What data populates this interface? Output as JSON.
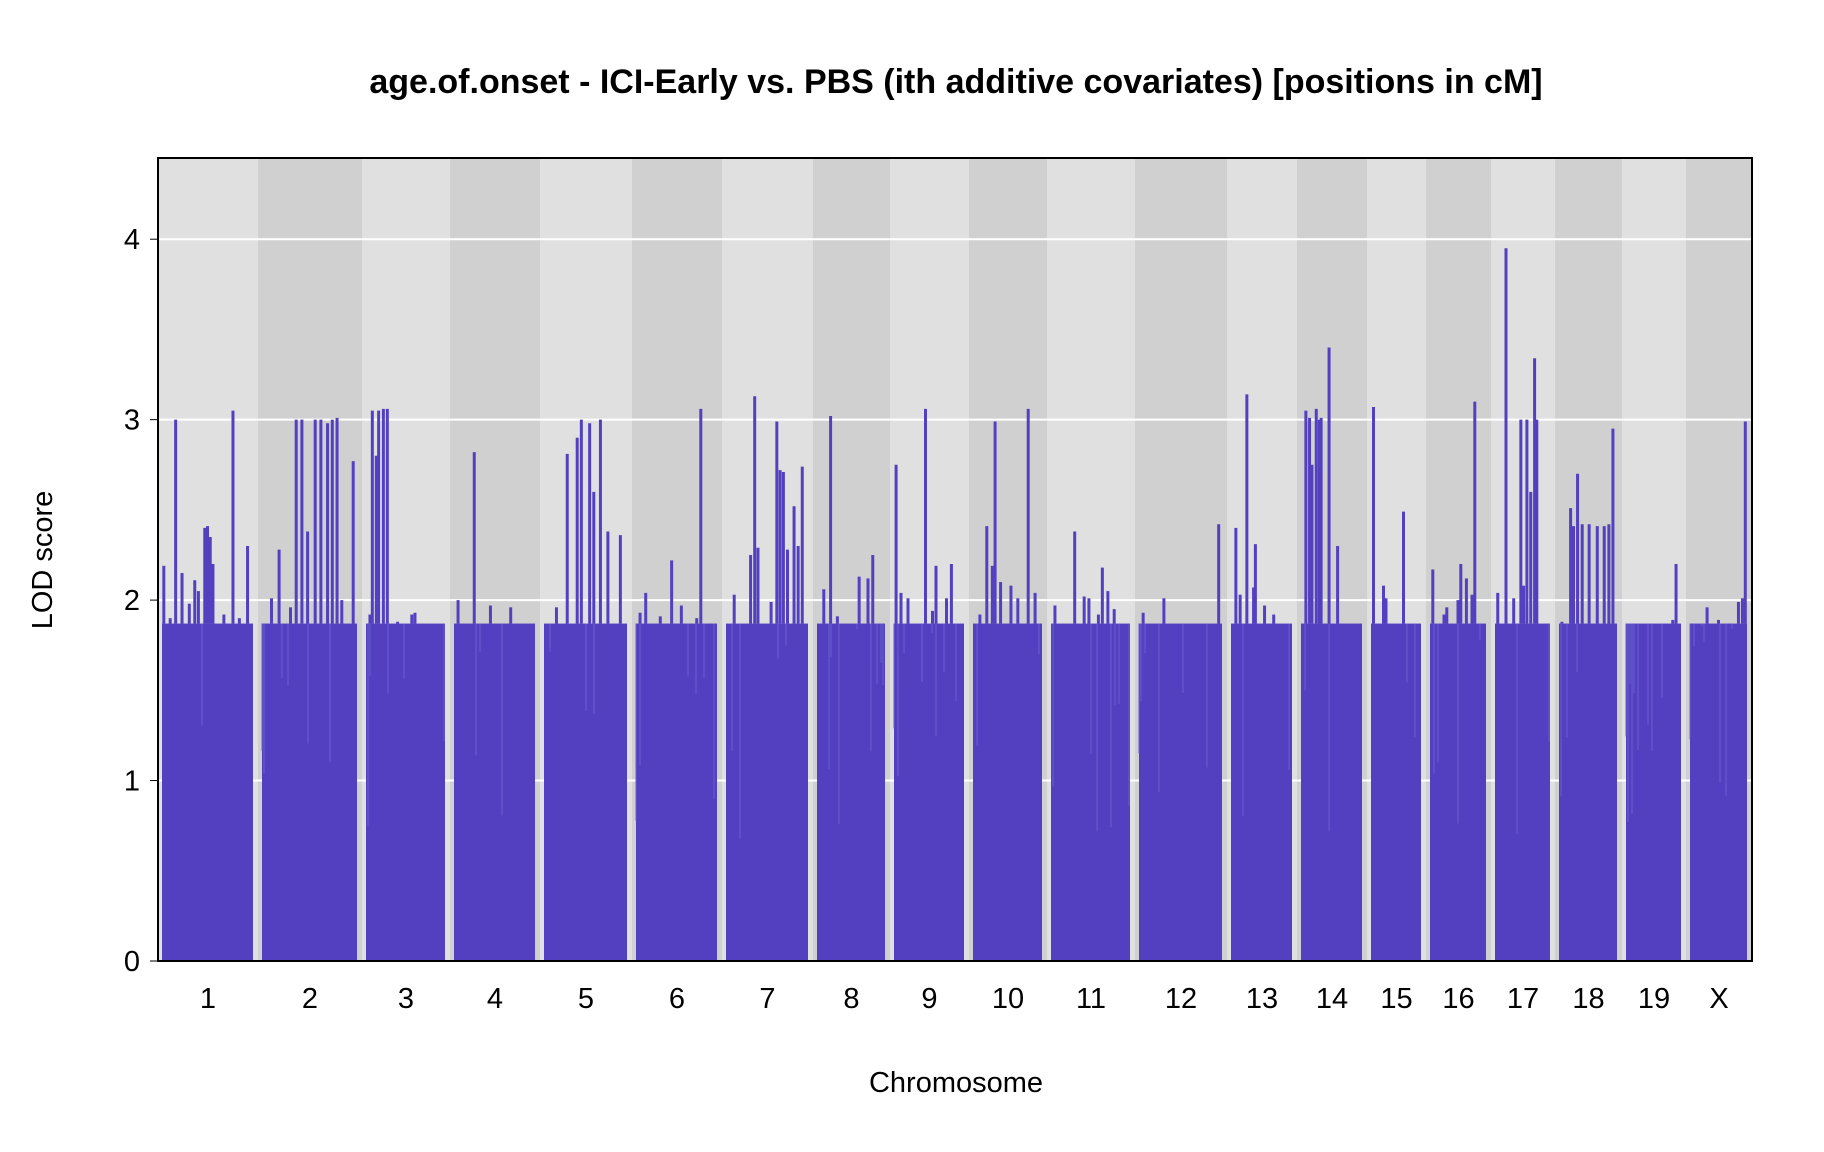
{
  "chart_data": {
    "type": "bar",
    "title": "age.of.onset - ICI-Early vs. PBS (ith additive covariates) [positions in cM]",
    "xlabel": "Chromosome",
    "ylabel": "LOD score",
    "ylim": [
      0,
      4.45
    ],
    "yticks": [
      0,
      1,
      2,
      3,
      4
    ],
    "grid": true,
    "legend": "none",
    "colors": {
      "signal": "#5340c0",
      "band_light": "#e0e0e0",
      "band_dark": "#d0d0d0",
      "grid": "#ffffff",
      "frame": "#000000"
    },
    "categories": [
      "1",
      "2",
      "3",
      "4",
      "5",
      "6",
      "7",
      "8",
      "9",
      "10",
      "11",
      "12",
      "13",
      "14",
      "15",
      "16",
      "17",
      "18",
      "19",
      "X"
    ],
    "chromosomes": [
      {
        "label": "1",
        "baseline": 1.87,
        "peaks": [
          [
            0.02,
            2.19
          ],
          [
            0.09,
            1.9
          ],
          [
            0.15,
            3.0
          ],
          [
            0.22,
            2.15
          ],
          [
            0.3,
            1.98
          ],
          [
            0.36,
            2.11
          ],
          [
            0.4,
            2.05
          ],
          [
            0.47,
            2.4
          ],
          [
            0.5,
            2.41
          ],
          [
            0.53,
            2.35
          ],
          [
            0.56,
            2.2
          ],
          [
            0.68,
            1.92
          ],
          [
            0.78,
            3.05
          ],
          [
            0.85,
            1.9
          ],
          [
            0.94,
            2.3
          ]
        ]
      },
      {
        "label": "2",
        "baseline": 1.87,
        "peaks": [
          [
            0.1,
            2.01
          ],
          [
            0.18,
            2.28
          ],
          [
            0.3,
            1.96
          ],
          [
            0.36,
            3.0
          ],
          [
            0.42,
            3.0
          ],
          [
            0.48,
            2.38
          ],
          [
            0.56,
            3.0
          ],
          [
            0.62,
            3.0
          ],
          [
            0.69,
            2.98
          ],
          [
            0.74,
            3.0
          ],
          [
            0.79,
            3.01
          ],
          [
            0.84,
            2.0
          ],
          [
            0.96,
            2.77
          ]
        ]
      },
      {
        "label": "3",
        "baseline": 1.87,
        "peaks": [
          [
            0.05,
            1.92
          ],
          [
            0.08,
            3.05
          ],
          [
            0.13,
            2.8
          ],
          [
            0.16,
            3.05
          ],
          [
            0.22,
            3.06
          ],
          [
            0.27,
            3.06
          ],
          [
            0.4,
            1.88
          ],
          [
            0.58,
            1.92
          ],
          [
            0.62,
            1.93
          ],
          [
            0.8,
            1.87
          ]
        ]
      },
      {
        "label": "4",
        "baseline": 1.87,
        "peaks": [
          [
            0.05,
            2.0
          ],
          [
            0.25,
            2.82
          ],
          [
            0.45,
            1.97
          ],
          [
            0.7,
            1.96
          ]
        ]
      },
      {
        "label": "5",
        "baseline": 1.87,
        "peaks": [
          [
            0.15,
            1.96
          ],
          [
            0.28,
            2.81
          ],
          [
            0.4,
            2.9
          ],
          [
            0.45,
            3.0
          ],
          [
            0.55,
            2.98
          ],
          [
            0.6,
            2.6
          ],
          [
            0.68,
            3.0
          ],
          [
            0.77,
            2.38
          ],
          [
            0.92,
            2.36
          ]
        ]
      },
      {
        "label": "6",
        "baseline": 1.87,
        "peaks": [
          [
            0.05,
            1.93
          ],
          [
            0.12,
            2.04
          ],
          [
            0.3,
            1.91
          ],
          [
            0.44,
            2.22
          ],
          [
            0.56,
            1.97
          ],
          [
            0.75,
            1.9
          ],
          [
            0.8,
            3.06
          ],
          [
            0.92,
            1.65
          ]
        ]
      },
      {
        "label": "7",
        "baseline": 1.87,
        "peaks": [
          [
            0.1,
            2.03
          ],
          [
            0.3,
            2.25
          ],
          [
            0.35,
            3.13
          ],
          [
            0.39,
            2.29
          ],
          [
            0.55,
            1.99
          ],
          [
            0.62,
            2.99
          ],
          [
            0.66,
            2.72
          ],
          [
            0.7,
            2.71
          ],
          [
            0.75,
            2.28
          ],
          [
            0.83,
            2.52
          ],
          [
            0.88,
            2.3
          ],
          [
            0.93,
            2.74
          ]
        ]
      },
      {
        "label": "8",
        "baseline": 1.87,
        "peaks": [
          [
            0.1,
            2.06
          ],
          [
            0.2,
            3.02
          ],
          [
            0.3,
            1.91
          ],
          [
            0.62,
            2.13
          ],
          [
            0.75,
            2.12
          ],
          [
            0.82,
            2.25
          ]
        ]
      },
      {
        "label": "9",
        "baseline": 1.87,
        "peaks": [
          [
            0.03,
            2.75
          ],
          [
            0.1,
            2.04
          ],
          [
            0.2,
            2.01
          ],
          [
            0.45,
            3.06
          ],
          [
            0.55,
            1.94
          ],
          [
            0.6,
            2.19
          ],
          [
            0.75,
            2.01
          ],
          [
            0.82,
            2.2
          ]
        ]
      },
      {
        "label": "10",
        "baseline": 1.87,
        "peaks": [
          [
            0.1,
            1.92
          ],
          [
            0.2,
            2.41
          ],
          [
            0.28,
            2.19
          ],
          [
            0.32,
            2.99
          ],
          [
            0.4,
            2.1
          ],
          [
            0.55,
            2.08
          ],
          [
            0.65,
            2.01
          ],
          [
            0.8,
            3.06
          ],
          [
            0.9,
            2.04
          ]
        ]
      },
      {
        "label": "11",
        "baseline": 1.87,
        "peaks": [
          [
            0.05,
            1.97
          ],
          [
            0.2,
            1.87
          ],
          [
            0.3,
            2.38
          ],
          [
            0.42,
            2.02
          ],
          [
            0.48,
            2.01
          ],
          [
            0.6,
            1.92
          ],
          [
            0.65,
            2.18
          ],
          [
            0.72,
            2.05
          ],
          [
            0.8,
            1.95
          ]
        ]
      },
      {
        "label": "12",
        "baseline": 1.87,
        "peaks": [
          [
            0.05,
            1.93
          ],
          [
            0.3,
            2.01
          ],
          [
            0.96,
            2.42
          ]
        ]
      },
      {
        "label": "13",
        "baseline": 1.87,
        "peaks": [
          [
            0.08,
            2.4
          ],
          [
            0.15,
            2.03
          ],
          [
            0.26,
            3.14
          ],
          [
            0.37,
            2.07
          ],
          [
            0.4,
            2.31
          ],
          [
            0.55,
            1.97
          ],
          [
            0.7,
            1.92
          ]
        ]
      },
      {
        "label": "14",
        "baseline": 1.87,
        "peaks": [
          [
            0.08,
            3.05
          ],
          [
            0.14,
            3.01
          ],
          [
            0.18,
            2.75
          ],
          [
            0.25,
            3.06
          ],
          [
            0.3,
            3.0
          ],
          [
            0.33,
            3.01
          ],
          [
            0.46,
            3.4
          ],
          [
            0.6,
            2.3
          ]
        ]
      },
      {
        "label": "15",
        "baseline": 1.87,
        "peaks": [
          [
            0.05,
            3.07
          ],
          [
            0.25,
            2.08
          ],
          [
            0.3,
            2.01
          ],
          [
            0.65,
            2.49
          ]
        ]
      },
      {
        "label": "16",
        "baseline": 1.87,
        "peaks": [
          [
            0.05,
            2.17
          ],
          [
            0.25,
            1.92
          ],
          [
            0.3,
            1.96
          ],
          [
            0.5,
            2.0
          ],
          [
            0.55,
            2.2
          ],
          [
            0.65,
            2.12
          ],
          [
            0.75,
            2.03
          ],
          [
            0.8,
            3.1
          ]
        ]
      },
      {
        "label": "17",
        "baseline": 1.87,
        "peaks": [
          [
            0.05,
            2.04
          ],
          [
            0.2,
            3.95
          ],
          [
            0.34,
            2.01
          ],
          [
            0.47,
            3.0
          ],
          [
            0.52,
            2.08
          ],
          [
            0.58,
            3.0
          ],
          [
            0.65,
            2.6
          ],
          [
            0.72,
            3.34
          ],
          [
            0.76,
            3.0
          ]
        ]
      },
      {
        "label": "18",
        "baseline": 1.87,
        "peaks": [
          [
            0.05,
            1.88
          ],
          [
            0.2,
            2.51
          ],
          [
            0.25,
            2.41
          ],
          [
            0.32,
            2.7
          ],
          [
            0.4,
            2.42
          ],
          [
            0.52,
            2.42
          ],
          [
            0.66,
            2.41
          ],
          [
            0.78,
            2.41
          ],
          [
            0.86,
            2.42
          ],
          [
            0.93,
            2.95
          ]
        ]
      },
      {
        "label": "19",
        "baseline": 1.87,
        "peaks": [
          [
            0.85,
            1.89
          ],
          [
            0.91,
            2.2
          ]
        ]
      },
      {
        "label": "X",
        "baseline": 1.87,
        "peaks": [
          [
            0.05,
            1.87
          ],
          [
            0.3,
            1.96
          ],
          [
            0.5,
            1.89
          ],
          [
            0.7,
            1.85
          ],
          [
            0.85,
            1.99
          ],
          [
            0.92,
            2.01
          ],
          [
            0.97,
            2.99
          ]
        ]
      }
    ]
  }
}
